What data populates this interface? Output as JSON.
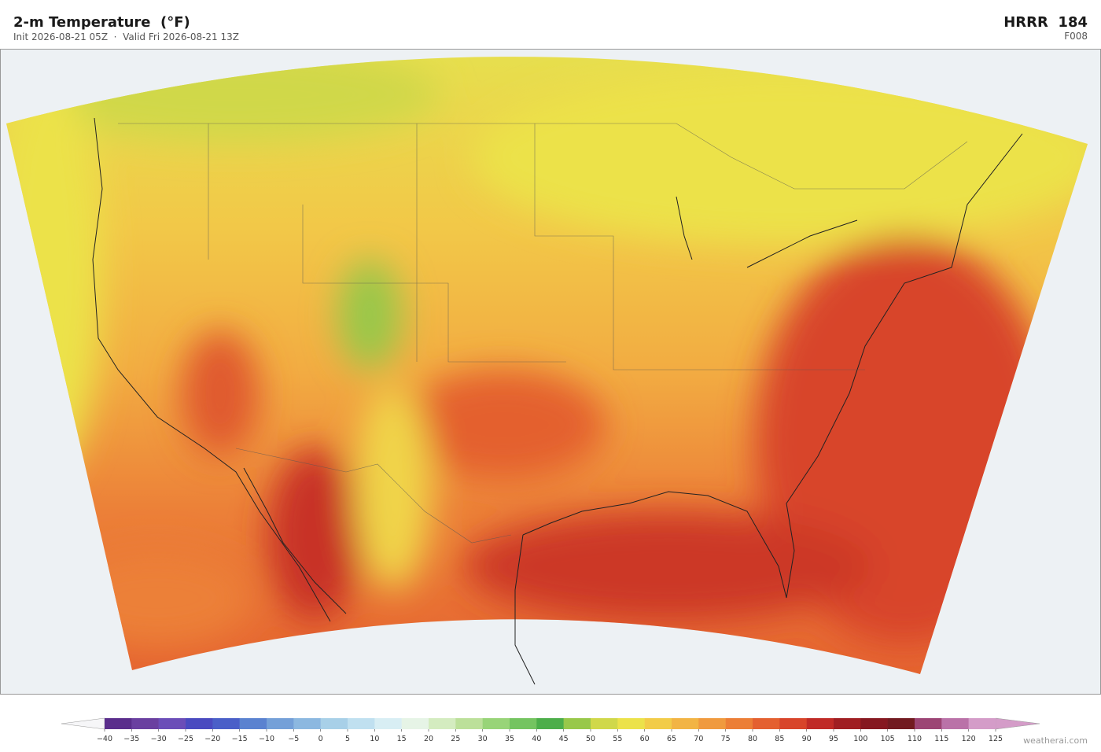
{
  "header": {
    "title": "2-m Temperature  (°F)",
    "subtitle": "Init 2026-08-21 05Z  ·  Valid Fri 2026-08-21 13Z",
    "model": "HRRR  184",
    "forecast_hour": "F008"
  },
  "colorbar": {
    "ticks": [
      {
        "value": -40,
        "label": "−40"
      },
      {
        "value": -35,
        "label": "−35"
      },
      {
        "value": -30,
        "label": "−30"
      },
      {
        "value": -25,
        "label": "−25"
      },
      {
        "value": -20,
        "label": "−20"
      },
      {
        "value": -15,
        "label": "−15"
      },
      {
        "value": -10,
        "label": "−10"
      },
      {
        "value": -5,
        "label": "−5"
      },
      0,
      5,
      10,
      15,
      20,
      25,
      30,
      35,
      40,
      45,
      50,
      55,
      60,
      65,
      70,
      75,
      80,
      85,
      90,
      95,
      100,
      105,
      110,
      115,
      120,
      125
    ],
    "colors": [
      "#5a2d8c",
      "#6a3fa0",
      "#6b4db8",
      "#4a4ac0",
      "#4a5fc8",
      "#5a82d0",
      "#74a0d8",
      "#8cb8e0",
      "#a8d0e8",
      "#c0e0f0",
      "#d8eef4",
      "#e6f4e6",
      "#d4ecc0",
      "#bce09a",
      "#98d478",
      "#74c460",
      "#4cae4a",
      "#98c84a",
      "#d0d84a",
      "#ece24a",
      "#f2cc48",
      "#f2b444",
      "#f09a3e",
      "#ec7e36",
      "#e46030",
      "#d8442a",
      "#c02a26",
      "#a01e22",
      "#861820",
      "#721a20",
      "#9c4474",
      "#ba72a8",
      "#d49cc8"
    ],
    "under_color": "#f6f6f8",
    "over_color": "#d49cc8"
  },
  "watermark": "weatherai.com"
}
